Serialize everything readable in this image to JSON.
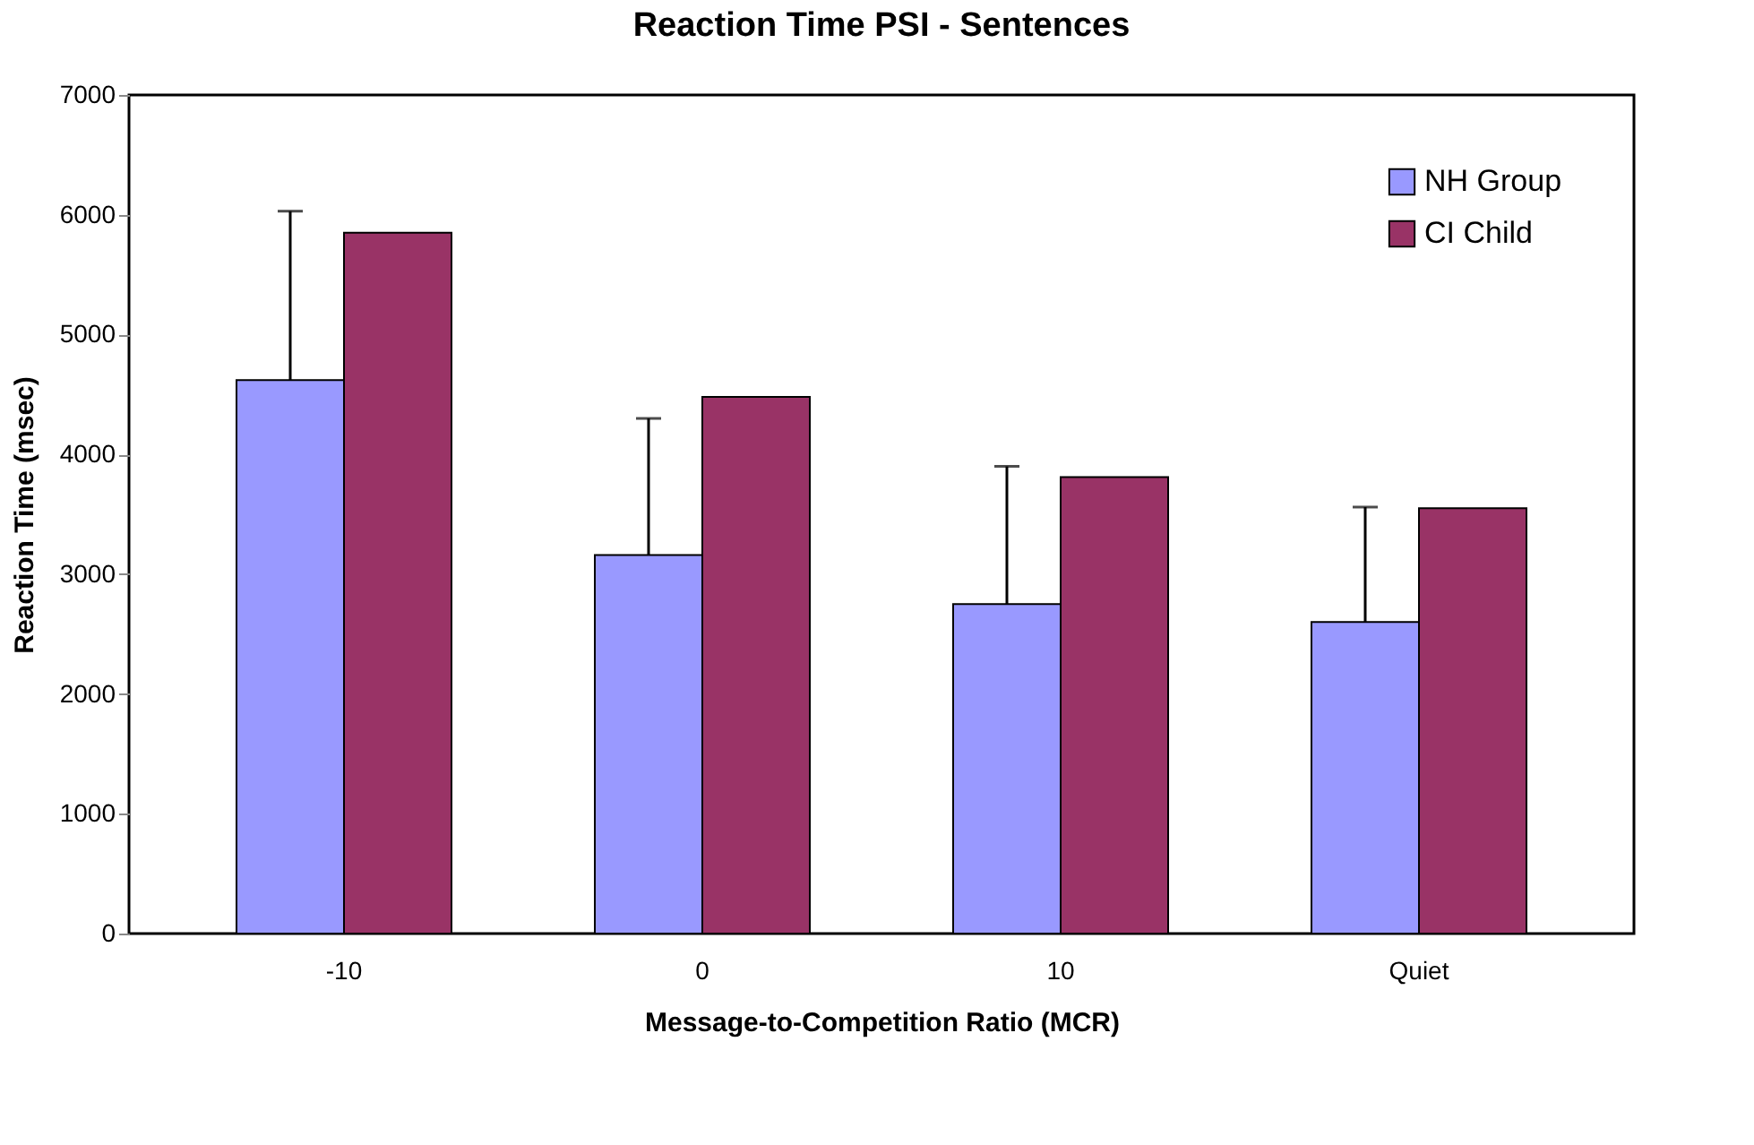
{
  "chart_data": {
    "type": "bar",
    "title": "Reaction Time PSI - Sentences",
    "xlabel": "Message-to-Competition Ratio (MCR)",
    "ylabel": "Reaction Time (msec)",
    "categories": [
      "-10",
      "0",
      "10",
      "Quiet"
    ],
    "series": [
      {
        "name": "NH Group",
        "color": "#9999ff",
        "values": [
          4620,
          3160,
          2750,
          2600
        ],
        "errors": [
          [
            4620,
            6030
          ],
          [
            3160,
            4300
          ],
          [
            2750,
            3900
          ],
          [
            2600,
            3560
          ]
        ]
      },
      {
        "name": "CI Child",
        "color": "#993366",
        "values": [
          5850,
          4480,
          3810,
          3550
        ]
      }
    ],
    "ylim": [
      0,
      7000
    ],
    "yticks": [
      0,
      1000,
      2000,
      3000,
      4000,
      5000,
      6000,
      7000
    ],
    "grid": false,
    "legend": "top right"
  }
}
